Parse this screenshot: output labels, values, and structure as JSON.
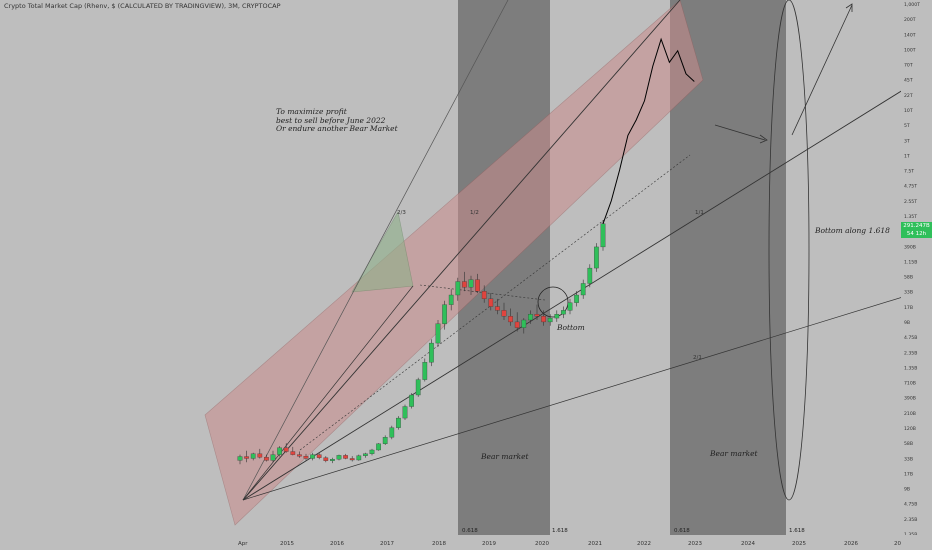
{
  "header": {
    "title": "Crypto Total Market Cap (Rhenv, $ (CALCULATED BY TRADINGVIEW), 3M, CRYPTOCAP"
  },
  "annotations": {
    "profit_line1": "To maximize profit",
    "profit_line2": "best to sell before June 2022",
    "profit_line3": "Or endure another Bear Market",
    "bear1": "Bear market",
    "bear2": "Bear market",
    "bottom": "Bottom",
    "bottom_along": "Bottom along 1.618",
    "fib_1": "0.618",
    "fib_2": "1.618",
    "fib_3": "0.618",
    "fib_4": "1.618",
    "fan_1": "2/3",
    "fan_2": "1/2",
    "fan_3": "1/1",
    "fan_4": "2/1"
  },
  "price_badge": {
    "value": "291.247B",
    "countdown": "54 12h"
  },
  "colors": {
    "background": "#bebebe",
    "bear_zone": "#727272",
    "up_candle": "#2fbf5a",
    "down_candle": "#e0443e",
    "pink_channel": "#c98c8c",
    "green_triangle": "#8fb08a"
  },
  "chart_data": {
    "type": "candlestick",
    "title": "Crypto Total Market Cap (Rhenv, $ (CALCULATED BY TRADINGVIEW), 3M, CRYPTOCAP",
    "y_scale": "log",
    "y_ticks": [
      "1,000T",
      "200T",
      "140T",
      "100T",
      "70T",
      "45T",
      "22T",
      "10T",
      "5T",
      "3T",
      "1T",
      "7.5T",
      "4.75T",
      "2.55T",
      "1.35T",
      "710B",
      "390B",
      "1.15B",
      "58B",
      "33B",
      "17B",
      "9B",
      "4.75B",
      "2.35B",
      "1.35B",
      "710B",
      "390B",
      "210B",
      "120B",
      "58B",
      "33B",
      "17B",
      "9B",
      "4.75B",
      "2.35B",
      "1.35B"
    ],
    "x_ticks": [
      "Apr",
      "2015",
      "2016",
      "2017",
      "2018",
      "2019",
      "2020",
      "2021",
      "2022",
      "2023",
      "2024",
      "2025",
      "2026",
      "20"
    ],
    "candles": [
      {
        "o": 0.55,
        "h": 0.7,
        "l": 0.45,
        "c": 0.65
      },
      {
        "o": 0.65,
        "h": 0.8,
        "l": 0.5,
        "c": 0.6
      },
      {
        "o": 0.6,
        "h": 0.75,
        "l": 0.55,
        "c": 0.72
      },
      {
        "o": 0.72,
        "h": 0.85,
        "l": 0.6,
        "c": 0.63
      },
      {
        "o": 0.63,
        "h": 0.7,
        "l": 0.52,
        "c": 0.55
      },
      {
        "o": 0.55,
        "h": 0.8,
        "l": 0.5,
        "c": 0.7
      },
      {
        "o": 0.7,
        "h": 0.92,
        "l": 0.65,
        "c": 0.88
      },
      {
        "o": 0.88,
        "h": 1.0,
        "l": 0.75,
        "c": 0.78
      },
      {
        "o": 0.78,
        "h": 0.9,
        "l": 0.68,
        "c": 0.7
      },
      {
        "o": 0.7,
        "h": 0.78,
        "l": 0.62,
        "c": 0.66
      },
      {
        "o": 0.66,
        "h": 0.72,
        "l": 0.55,
        "c": 0.6
      },
      {
        "o": 0.6,
        "h": 0.75,
        "l": 0.55,
        "c": 0.7
      },
      {
        "o": 0.7,
        "h": 0.75,
        "l": 0.58,
        "c": 0.62
      },
      {
        "o": 0.62,
        "h": 0.66,
        "l": 0.5,
        "c": 0.54
      },
      {
        "o": 0.54,
        "h": 0.62,
        "l": 0.48,
        "c": 0.58
      },
      {
        "o": 0.58,
        "h": 0.7,
        "l": 0.55,
        "c": 0.68
      },
      {
        "o": 0.68,
        "h": 0.72,
        "l": 0.58,
        "c": 0.6
      },
      {
        "o": 0.6,
        "h": 0.66,
        "l": 0.52,
        "c": 0.56
      },
      {
        "o": 0.56,
        "h": 0.7,
        "l": 0.54,
        "c": 0.67
      },
      {
        "o": 0.67,
        "h": 0.75,
        "l": 0.62,
        "c": 0.72
      },
      {
        "o": 0.72,
        "h": 0.85,
        "l": 0.68,
        "c": 0.82
      },
      {
        "o": 0.82,
        "h": 1.0,
        "l": 0.8,
        "c": 0.98
      },
      {
        "o": 0.98,
        "h": 1.2,
        "l": 0.95,
        "c": 1.15
      },
      {
        "o": 1.15,
        "h": 1.45,
        "l": 1.1,
        "c": 1.4
      },
      {
        "o": 1.4,
        "h": 1.7,
        "l": 1.35,
        "c": 1.65
      },
      {
        "o": 1.65,
        "h": 2.0,
        "l": 1.6,
        "c": 1.95
      },
      {
        "o": 1.95,
        "h": 2.3,
        "l": 1.9,
        "c": 2.25
      },
      {
        "o": 2.25,
        "h": 2.7,
        "l": 2.2,
        "c": 2.65
      },
      {
        "o": 2.65,
        "h": 3.2,
        "l": 2.6,
        "c": 3.1
      },
      {
        "o": 3.1,
        "h": 3.7,
        "l": 3.0,
        "c": 3.6
      },
      {
        "o": 3.6,
        "h": 4.2,
        "l": 3.5,
        "c": 4.1
      },
      {
        "o": 4.1,
        "h": 4.7,
        "l": 3.95,
        "c": 4.6
      },
      {
        "o": 4.6,
        "h": 5.0,
        "l": 4.45,
        "c": 4.85
      },
      {
        "o": 4.85,
        "h": 5.3,
        "l": 4.7,
        "c": 5.2
      },
      {
        "o": 5.2,
        "h": 5.45,
        "l": 4.95,
        "c": 5.05
      },
      {
        "o": 5.05,
        "h": 5.35,
        "l": 4.85,
        "c": 5.25
      },
      {
        "o": 5.25,
        "h": 5.4,
        "l": 4.9,
        "c": 4.95
      },
      {
        "o": 4.95,
        "h": 5.1,
        "l": 4.65,
        "c": 4.75
      },
      {
        "o": 4.75,
        "h": 4.9,
        "l": 4.45,
        "c": 4.55
      },
      {
        "o": 4.55,
        "h": 4.75,
        "l": 4.35,
        "c": 4.45
      },
      {
        "o": 4.45,
        "h": 4.65,
        "l": 4.2,
        "c": 4.3
      },
      {
        "o": 4.3,
        "h": 4.5,
        "l": 4.05,
        "c": 4.15
      },
      {
        "o": 4.15,
        "h": 4.4,
        "l": 3.9,
        "c": 4.0
      },
      {
        "o": 4.0,
        "h": 4.25,
        "l": 3.85,
        "c": 4.2
      },
      {
        "o": 4.2,
        "h": 4.45,
        "l": 4.1,
        "c": 4.35
      },
      {
        "o": 4.35,
        "h": 4.6,
        "l": 4.2,
        "c": 4.3
      },
      {
        "o": 4.3,
        "h": 4.45,
        "l": 4.05,
        "c": 4.15
      },
      {
        "o": 4.15,
        "h": 4.35,
        "l": 4.05,
        "c": 4.25
      },
      {
        "o": 4.25,
        "h": 4.45,
        "l": 4.15,
        "c": 4.35
      },
      {
        "o": 4.35,
        "h": 4.55,
        "l": 4.25,
        "c": 4.45
      },
      {
        "o": 4.45,
        "h": 4.75,
        "l": 4.35,
        "c": 4.65
      },
      {
        "o": 4.65,
        "h": 4.95,
        "l": 4.55,
        "c": 4.85
      },
      {
        "o": 4.85,
        "h": 5.25,
        "l": 4.75,
        "c": 5.15
      },
      {
        "o": 5.15,
        "h": 5.65,
        "l": 5.05,
        "c": 5.55
      },
      {
        "o": 5.55,
        "h": 6.2,
        "l": 5.45,
        "c": 6.1
      },
      {
        "o": 6.1,
        "h": 6.8,
        "l": 6.0,
        "c": 6.7
      }
    ],
    "projection": [
      {
        "t": 0.0,
        "v": 6.7
      },
      {
        "t": 1.0,
        "v": 7.3
      },
      {
        "t": 2.0,
        "v": 8.1
      },
      {
        "t": 3.0,
        "v": 9.0
      },
      {
        "t": 4.0,
        "v": 9.4
      },
      {
        "t": 5.0,
        "v": 9.9
      },
      {
        "t": 6.0,
        "v": 10.8
      },
      {
        "t": 7.0,
        "v": 11.5
      },
      {
        "t": 8.0,
        "v": 10.9
      },
      {
        "t": 9.0,
        "v": 11.2
      },
      {
        "t": 10.0,
        "v": 10.6
      },
      {
        "t": 11.0,
        "v": 10.4
      }
    ]
  }
}
